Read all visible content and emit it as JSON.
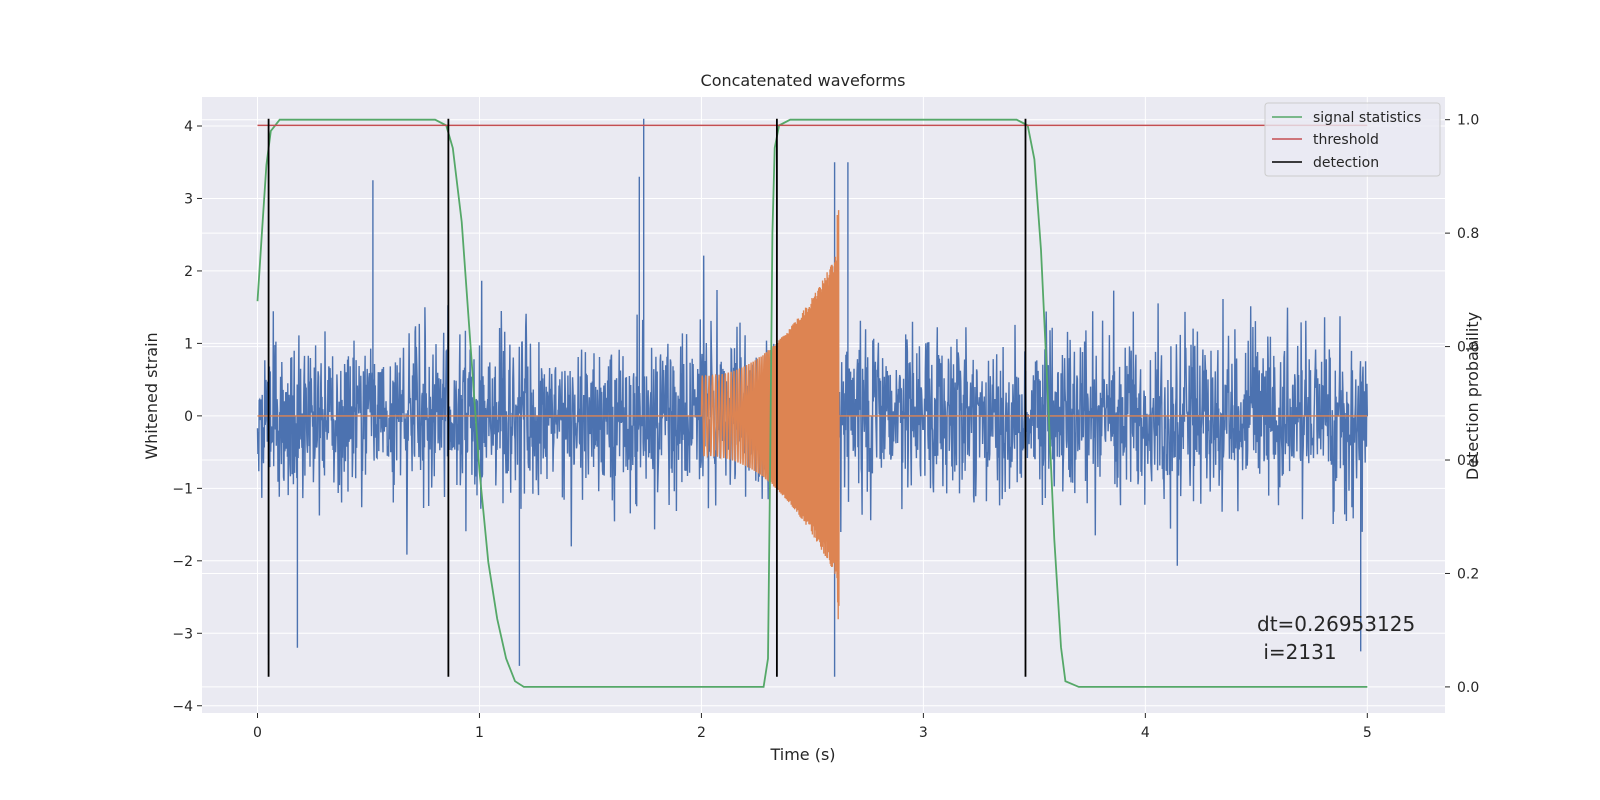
{
  "chart_data": {
    "type": "line",
    "title": "Concatenated waveforms",
    "xlabel": "Time (s)",
    "ylabel": "Whitened strain",
    "y2label": "Detection probability",
    "xlim": [
      -0.25,
      5.35
    ],
    "ylim": [
      -4.1,
      4.4
    ],
    "y2lim": [
      -0.046,
      1.04
    ],
    "x_ticks": [
      0,
      1,
      2,
      3,
      4,
      5
    ],
    "y_ticks": [
      -4,
      -3,
      -2,
      -1,
      0,
      1,
      2,
      3,
      4
    ],
    "y2_ticks": [
      0.0,
      0.2,
      0.4,
      0.6,
      0.8,
      1.0
    ],
    "x_tick_labels": [
      "0",
      "1",
      "2",
      "3",
      "4",
      "5"
    ],
    "y_tick_labels": [
      "−4",
      "−3",
      "−2",
      "−1",
      "0",
      "1",
      "2",
      "3",
      "4"
    ],
    "y2_tick_labels": [
      "0.0",
      "0.2",
      "0.4",
      "0.6",
      "0.8",
      "1.0"
    ],
    "grid": true,
    "legend_position": "top-right",
    "colors": {
      "background": "#eaeaf2",
      "strain": "#4c72b0",
      "injected": "#dd8452",
      "signal_statistics": "#55a868",
      "threshold": "#c44e52",
      "detection": "#000000",
      "grid": "#ffffff"
    },
    "series": [
      {
        "name": "signal statistics",
        "axis": "right",
        "points": [
          [
            0.0,
            0.68
          ],
          [
            0.02,
            0.8
          ],
          [
            0.04,
            0.92
          ],
          [
            0.06,
            0.98
          ],
          [
            0.1,
            1.0
          ],
          [
            0.8,
            1.0
          ],
          [
            0.85,
            0.99
          ],
          [
            0.88,
            0.95
          ],
          [
            0.92,
            0.82
          ],
          [
            0.96,
            0.6
          ],
          [
            1.0,
            0.38
          ],
          [
            1.04,
            0.22
          ],
          [
            1.08,
            0.12
          ],
          [
            1.12,
            0.05
          ],
          [
            1.16,
            0.01
          ],
          [
            1.2,
            0.0
          ],
          [
            2.28,
            0.0
          ],
          [
            2.3,
            0.05
          ],
          [
            2.31,
            0.4
          ],
          [
            2.32,
            0.8
          ],
          [
            2.33,
            0.95
          ],
          [
            2.35,
            0.99
          ],
          [
            2.4,
            1.0
          ],
          [
            3.42,
            1.0
          ],
          [
            3.47,
            0.99
          ],
          [
            3.5,
            0.93
          ],
          [
            3.53,
            0.77
          ],
          [
            3.56,
            0.52
          ],
          [
            3.59,
            0.26
          ],
          [
            3.62,
            0.07
          ],
          [
            3.64,
            0.01
          ],
          [
            3.7,
            0.0
          ],
          [
            5.0,
            0.0
          ]
        ]
      },
      {
        "name": "threshold",
        "axis": "right",
        "points": [
          [
            0.0,
            0.99
          ],
          [
            5.0,
            0.99
          ]
        ]
      },
      {
        "name": "detection",
        "axis": "left",
        "segments": [
          {
            "x": 0.05,
            "y": [
              -3.6,
              4.1
            ]
          },
          {
            "x": 0.86,
            "y": [
              -3.6,
              4.1
            ]
          },
          {
            "x": 2.34,
            "y": [
              -3.6,
              4.1
            ]
          },
          {
            "x": 3.46,
            "y": [
              -3.6,
              4.1
            ]
          }
        ]
      }
    ],
    "strain": {
      "axis": "left",
      "x_range": [
        0.0,
        5.0
      ],
      "noise_std": 0.55,
      "peaks": [
        [
          1.74,
          4.1
        ],
        [
          2.6,
          -3.6
        ],
        [
          1.18,
          -3.45
        ],
        [
          0.05,
          -3.3
        ],
        [
          0.18,
          -3.2
        ],
        [
          4.97,
          -3.25
        ],
        [
          2.6,
          3.5
        ],
        [
          2.66,
          3.5
        ],
        [
          0.52,
          3.25
        ],
        [
          1.72,
          3.3
        ]
      ]
    },
    "injected": {
      "axis": "left",
      "x_range": [
        2.0,
        2.62
      ],
      "amplitude_start": 0.55,
      "amplitude_end": 2.3,
      "min_value": -2.95
    },
    "annotations": [
      "dt=0.26953125",
      " i=2131"
    ]
  }
}
